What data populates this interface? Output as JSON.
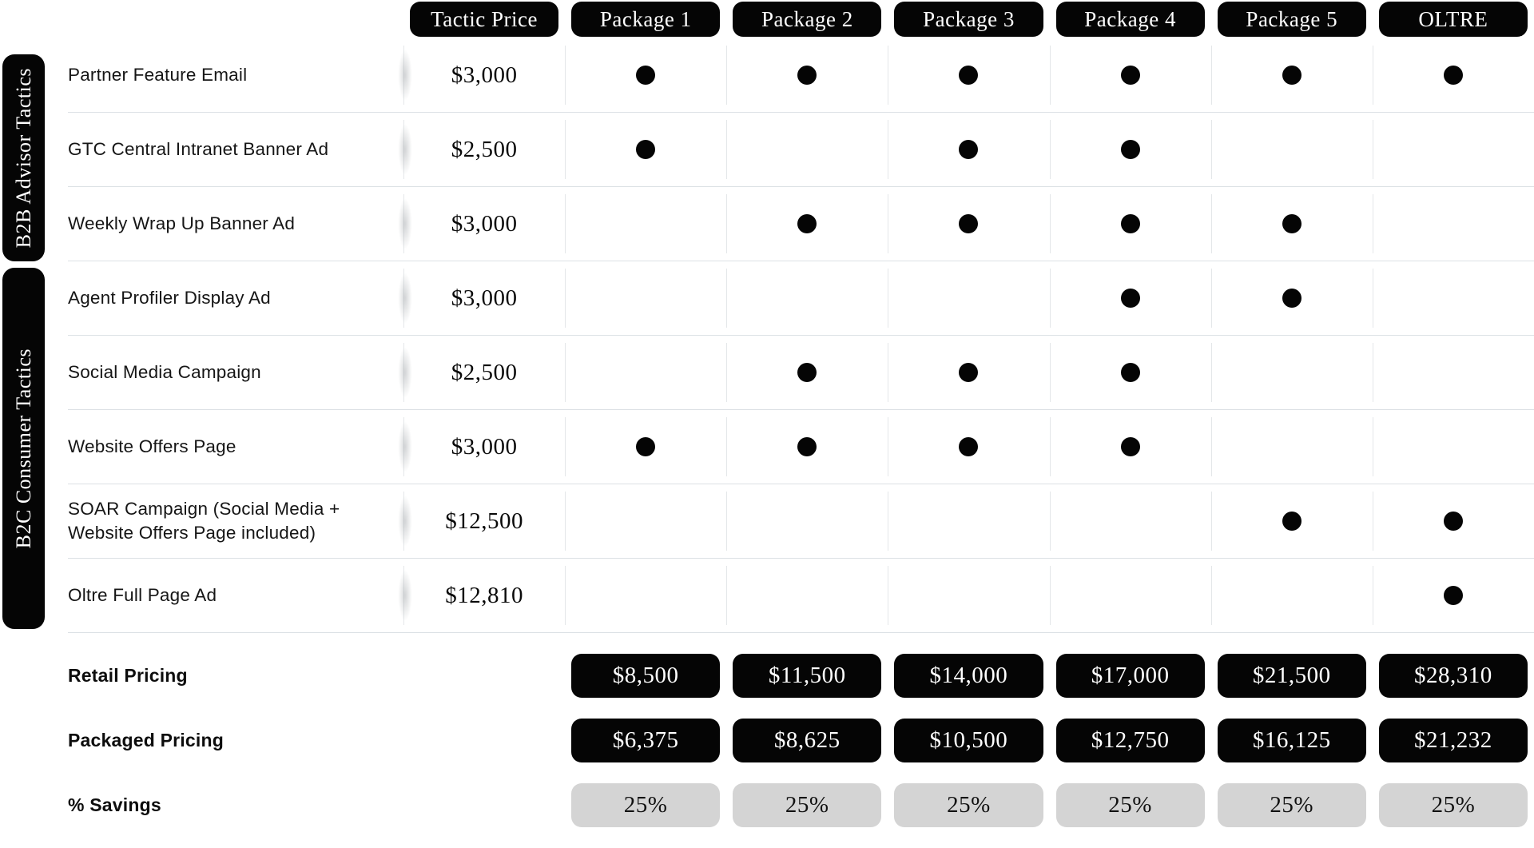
{
  "sidebar": {
    "groups": [
      {
        "label": "B2B Advisor Tactics"
      },
      {
        "label": "B2C Consumer Tactics"
      }
    ]
  },
  "header": {
    "columns": [
      "Tactic Price",
      "Package 1",
      "Package 2",
      "Package 3",
      "Package 4",
      "Package 5",
      "OLTRE"
    ]
  },
  "tactics": [
    {
      "name": "Partner Feature Email",
      "group": "B2B Advisor Tactics",
      "price": "$3,000",
      "packages": [
        1,
        1,
        1,
        1,
        1,
        1
      ]
    },
    {
      "name": "GTC Central Intranet Banner Ad",
      "group": "B2B Advisor Tactics",
      "price": "$2,500",
      "packages": [
        1,
        0,
        1,
        1,
        0,
        0
      ]
    },
    {
      "name": "Weekly Wrap Up Banner Ad",
      "group": "B2B Advisor Tactics",
      "price": "$3,000",
      "packages": [
        0,
        1,
        1,
        1,
        1,
        0
      ]
    },
    {
      "name": "Agent Profiler Display Ad",
      "group": "B2C Consumer Tactics",
      "price": "$3,000",
      "packages": [
        0,
        0,
        0,
        1,
        1,
        0
      ]
    },
    {
      "name": "Social Media Campaign",
      "group": "B2C Consumer Tactics",
      "price": "$2,500",
      "packages": [
        0,
        1,
        1,
        1,
        0,
        0
      ]
    },
    {
      "name": "Website Offers Page",
      "group": "B2C Consumer Tactics",
      "price": "$3,000",
      "packages": [
        1,
        1,
        1,
        1,
        0,
        0
      ]
    },
    {
      "name": "SOAR Campaign (Social Media + Website Offers Page included)",
      "group": "B2C Consumer Tactics",
      "price": "$12,500",
      "packages": [
        0,
        0,
        0,
        0,
        1,
        1
      ]
    },
    {
      "name": "Oltre Full Page Ad",
      "group": "B2C Consumer Tactics",
      "price": "$12,810",
      "packages": [
        0,
        0,
        0,
        0,
        0,
        1
      ]
    }
  ],
  "summary": {
    "rows": [
      {
        "label": "Retail Pricing",
        "style": "black",
        "values": [
          "$8,500",
          "$11,500",
          "$14,000",
          "$17,000",
          "$21,500",
          "$28,310"
        ]
      },
      {
        "label": "Packaged Pricing",
        "style": "black",
        "values": [
          "$6,375",
          "$8,625",
          "$10,500",
          "$12,750",
          "$16,125",
          "$21,232"
        ]
      },
      {
        "label": "% Savings",
        "style": "gray",
        "values": [
          "25%",
          "25%",
          "25%",
          "25%",
          "25%",
          "25%"
        ]
      }
    ]
  },
  "colors": {
    "pill_black": "#050505",
    "pill_gray": "#d4d4d4",
    "row_separator": "#dce1e5",
    "column_divider": "#e4e7e9",
    "label_text": "#161616"
  }
}
